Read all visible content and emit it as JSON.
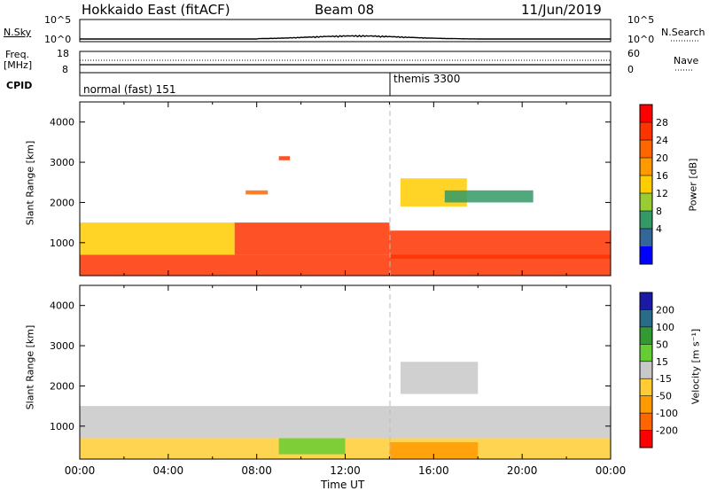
{
  "header": {
    "station": "Hokkaido East (fitACF)",
    "beam": "Beam 08",
    "date": "11/Jun/2019"
  },
  "noise_panel": {
    "left_label": "N.Sky",
    "right_label": "N.Search",
    "left_ticks": [
      "10^5",
      "10^0"
    ],
    "right_ticks": [
      "10^5",
      "10^0"
    ]
  },
  "freq_panel": {
    "left_label_line1": "Freq.",
    "left_label_line2": "[MHz]",
    "right_label": "Nave",
    "left_ticks": [
      "18",
      "8"
    ],
    "right_ticks": [
      "60",
      "0"
    ]
  },
  "cpid_panel": {
    "label": "CPID",
    "modes": [
      "normal (fast) 151",
      "themis 3300"
    ]
  },
  "power_panel": {
    "ylabel": "Slant Range [km]",
    "colorbar_label": "Power [dB]",
    "colorbar_ticks": [
      "28",
      "24",
      "20",
      "16",
      "12",
      "8",
      "4"
    ],
    "colors": [
      "#ff0000",
      "#ff3300",
      "#ff6600",
      "#ff9900",
      "#ffcc00",
      "#99cc33",
      "#339966",
      "#336699",
      "#0000ff"
    ]
  },
  "velocity_panel": {
    "ylabel": "Slant Range [km]",
    "colorbar_label": "Velocity [m s⁻¹]",
    "colorbar_ticks": [
      "200",
      "100",
      "50",
      "15",
      "-15",
      "-50",
      "-100",
      "-200"
    ],
    "colors": [
      "#1a1aa6",
      "#2a6b8a",
      "#339933",
      "#66cc33",
      "#c8c8c8",
      "#ffcc33",
      "#ff9900",
      "#ff6600",
      "#ff0000"
    ]
  },
  "xaxis": {
    "label": "Time UT",
    "ticks": [
      "00:00",
      "04:00",
      "08:00",
      "12:00",
      "16:00",
      "20:00",
      "00:00"
    ]
  },
  "chart_data": [
    {
      "type": "heatmap",
      "title": "Power",
      "ylabel": "Slant Range [km]",
      "xlabel": "",
      "ylim": [
        180,
        4500
      ],
      "y_ticks": [
        1000,
        2000,
        3000,
        4000
      ],
      "colorbar": {
        "label": "Power [dB]",
        "range": [
          0,
          32
        ],
        "ticks": [
          4,
          8,
          12,
          16,
          20,
          24,
          28
        ]
      },
      "regions": [
        {
          "t": [
            0.0,
            24.0
          ],
          "range_km": [
            180,
            700
          ],
          "power_db": 28
        },
        {
          "t": [
            0.0,
            7.0
          ],
          "range_km": [
            700,
            1500
          ],
          "power_db": 14
        },
        {
          "t": [
            7.0,
            14.0
          ],
          "range_km": [
            700,
            1500
          ],
          "power_db": 26
        },
        {
          "t": [
            14.0,
            24.0
          ],
          "range_km": [
            600,
            1300
          ],
          "power_db": 28
        },
        {
          "t": [
            7.5,
            8.5
          ],
          "range_km": [
            2200,
            2300
          ],
          "power_db": 22
        },
        {
          "t": [
            9.0,
            9.5
          ],
          "range_km": [
            3050,
            3150
          ],
          "power_db": 26
        },
        {
          "t": [
            14.5,
            17.5
          ],
          "range_km": [
            1900,
            2600
          ],
          "power_db": 14
        },
        {
          "t": [
            16.5,
            20.5
          ],
          "range_km": [
            2000,
            2300
          ],
          "power_db": 8
        }
      ]
    },
    {
      "type": "heatmap",
      "title": "Velocity",
      "ylabel": "Slant Range [km]",
      "xlabel": "Time UT",
      "ylim": [
        180,
        4500
      ],
      "y_ticks": [
        1000,
        2000,
        3000,
        4000
      ],
      "colorbar": {
        "label": "Velocity [m s-1]",
        "range": [
          -250,
          250
        ],
        "ticks": [
          -200,
          -100,
          -50,
          -15,
          15,
          50,
          100,
          200
        ]
      },
      "regions": [
        {
          "t": [
            0.0,
            24.0
          ],
          "range_km": [
            180,
            700
          ],
          "velocity": -40
        },
        {
          "t": [
            0.0,
            24.0
          ],
          "range_km": [
            700,
            1500
          ],
          "velocity": 0
        },
        {
          "t": [
            14.5,
            18.0
          ],
          "range_km": [
            1800,
            2600
          ],
          "velocity": 0
        },
        {
          "t": [
            9.0,
            12.0
          ],
          "range_km": [
            300,
            700
          ],
          "velocity": 30
        },
        {
          "t": [
            14.0,
            18.0
          ],
          "range_km": [
            200,
            600
          ],
          "velocity": -60
        }
      ]
    }
  ]
}
